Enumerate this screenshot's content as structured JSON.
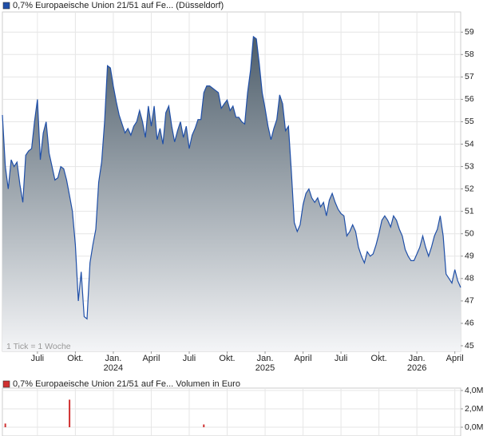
{
  "chart_data": [
    {
      "type": "area",
      "annotation": "1 Tick = 1 Woche",
      "series": [
        {
          "name": "0,7% Europaeische Union 21/51 auf Fe... (Düsseldorf)",
          "color": "#1f4fa8",
          "values": [
            55.3,
            53.0,
            52.0,
            53.3,
            53.0,
            53.2,
            52.2,
            51.4,
            53.5,
            53.7,
            53.8,
            55.0,
            56.0,
            53.3,
            54.5,
            55.0,
            53.6,
            53.0,
            52.4,
            52.5,
            53.0,
            52.9,
            52.4,
            51.7,
            51.0,
            49.5,
            47.0,
            48.3,
            46.3,
            46.2,
            48.7,
            49.5,
            50.2,
            52.3,
            53.2,
            55.0,
            57.5,
            57.4,
            56.6,
            55.9,
            55.3,
            54.9,
            54.5,
            54.7,
            54.4,
            54.8,
            55.0,
            55.5,
            55.0,
            54.3,
            55.7,
            54.8,
            55.7,
            54.2,
            54.7,
            54.0,
            55.4,
            55.7,
            54.8,
            54.1,
            54.6,
            55.0,
            54.3,
            54.8,
            53.8,
            54.4,
            54.7,
            55.1,
            55.1,
            56.3,
            56.6,
            56.6,
            56.5,
            56.4,
            56.3,
            55.6,
            55.8,
            55.97,
            55.5,
            55.7,
            55.2,
            55.2,
            55.0,
            54.9,
            56.3,
            57.3,
            58.8,
            58.7,
            57.6,
            56.3,
            55.6,
            54.8,
            54.2,
            54.7,
            55.1,
            56.2,
            55.8,
            54.6,
            54.8,
            52.8,
            50.5,
            50.1,
            50.4,
            51.3,
            51.8,
            52.0,
            51.6,
            51.4,
            51.6,
            51.2,
            51.4,
            50.8,
            51.5,
            51.8,
            51.4,
            51.1,
            50.9,
            50.8,
            49.9,
            50.1,
            50.4,
            50.1,
            49.4,
            49.0,
            48.7,
            49.2,
            49.0,
            49.1,
            49.5,
            50.0,
            50.6,
            50.8,
            50.6,
            50.3,
            50.8,
            50.6,
            50.2,
            49.9,
            49.3,
            49.0,
            48.8,
            48.8,
            49.1,
            49.4,
            49.9,
            49.4,
            49.0,
            49.4,
            49.9,
            50.2,
            50.8,
            49.9,
            48.2,
            48.0,
            47.8,
            48.4,
            47.9,
            47.6
          ]
        }
      ],
      "xlim": [
        0,
        157
      ],
      "xticks": [
        {
          "value": 12,
          "label": "Juli"
        },
        {
          "value": 25,
          "label": "Okt."
        },
        {
          "value": 38,
          "label": "Jan.\n2024"
        },
        {
          "value": 51,
          "label": "April"
        },
        {
          "value": 64,
          "label": "Juli"
        },
        {
          "value": 77,
          "label": "Okt."
        },
        {
          "value": 90,
          "label": "Jan.\n2025"
        },
        {
          "value": 103,
          "label": "April"
        },
        {
          "value": 116,
          "label": "Juli"
        },
        {
          "value": 129,
          "label": "Okt."
        },
        {
          "value": 142,
          "label": "Jan.\n2026"
        },
        {
          "value": 155,
          "label": "April"
        }
      ],
      "ylim": [
        44.75,
        59.9
      ],
      "yticks": [
        45,
        46,
        47,
        48,
        49,
        50,
        51,
        52,
        53,
        54,
        55,
        56,
        57,
        58,
        59
      ],
      "grid": true
    },
    {
      "type": "bar",
      "series": [
        {
          "name": "0,7% Europaeische Union 21/51 auf Fe... Volumen in Euro",
          "color": "#d03030",
          "x": [
            1,
            23,
            69
          ],
          "values": [
            400000,
            3000000,
            300000
          ]
        }
      ],
      "xlim": [
        0,
        157
      ],
      "ylim": [
        0,
        4000000
      ],
      "yticks": [
        {
          "value": 0,
          "label": "0,0M"
        },
        {
          "value": 2000000,
          "label": "2,0M"
        },
        {
          "value": 4000000,
          "label": "4,0M"
        }
      ],
      "grid": true
    }
  ]
}
